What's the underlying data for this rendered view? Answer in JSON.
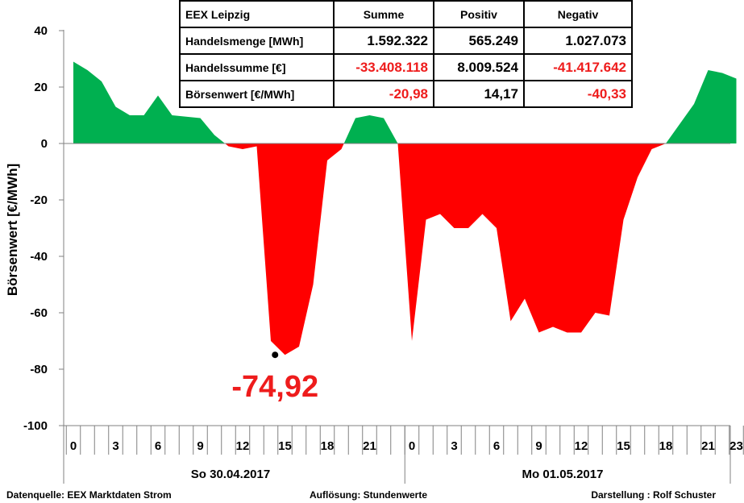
{
  "chart_data": {
    "type": "area",
    "ylabel": "Börsenwert  [€/MWh]",
    "ylim": [
      -100,
      40
    ],
    "yticks": [
      40,
      20,
      0,
      -20,
      -40,
      -60,
      -80,
      -100
    ],
    "x_tick_labels": [
      "0",
      "3",
      "6",
      "9",
      "12",
      "15",
      "18",
      "21",
      "0",
      "3",
      "6",
      "9",
      "12",
      "15",
      "18",
      "21",
      "23"
    ],
    "x_tick_hours": [
      0,
      3,
      6,
      9,
      12,
      15,
      18,
      21,
      24,
      27,
      30,
      33,
      36,
      39,
      42,
      45,
      47
    ],
    "days": [
      "So 30.04.2017",
      "Mo 01.05.2017"
    ],
    "x": [
      0,
      1,
      2,
      3,
      4,
      5,
      6,
      7,
      8,
      9,
      10,
      11,
      12,
      13,
      14,
      15,
      16,
      17,
      18,
      19,
      20,
      21,
      22,
      23,
      24,
      25,
      26,
      27,
      28,
      29,
      30,
      31,
      32,
      33,
      34,
      35,
      36,
      37,
      38,
      39,
      40,
      41,
      42,
      43,
      44,
      45,
      46,
      47
    ],
    "values": [
      29,
      26,
      22,
      13,
      10,
      10,
      17,
      10,
      9.5,
      9,
      3,
      -1,
      -2,
      -1,
      -70,
      -74.92,
      -72,
      -50,
      -6,
      -2,
      9,
      10,
      9,
      0,
      -70,
      -27,
      -25,
      -30,
      -30,
      -25,
      -30,
      -63,
      -55,
      -67,
      -65,
      -67,
      -67,
      -60,
      -61,
      -27,
      -12,
      -2,
      0,
      7,
      14,
      26,
      25,
      23
    ],
    "colors": {
      "positive": "#00b050",
      "negative": "#ff0000",
      "annotation": "#ee1c1c"
    },
    "annotation": {
      "label": "-74,92",
      "hour": 15,
      "value": -74.92
    }
  },
  "table": {
    "header": [
      "EEX Leipzig",
      "Summe",
      "Positiv",
      "Negativ"
    ],
    "rows": [
      {
        "label": "Handelsmenge  [MWh]",
        "values": [
          "1.592.322",
          "565.249",
          "1.027.073"
        ],
        "neg": [
          false,
          false,
          false
        ]
      },
      {
        "label": "Handelssumme  [€]",
        "values": [
          "-33.408.118",
          "8.009.524",
          "-41.417.642"
        ],
        "neg": [
          true,
          false,
          true
        ]
      },
      {
        "label": "Börsenwert [€/MWh]",
        "values": [
          "-20,98",
          "14,17",
          "-40,33"
        ],
        "neg": [
          true,
          false,
          true
        ]
      }
    ]
  },
  "footer": {
    "source": "Datenquelle:  EEX Marktdaten Strom",
    "resolution": "Auflösung:  Stundenwerte",
    "author": "Darstellung :  Rolf Schuster"
  }
}
